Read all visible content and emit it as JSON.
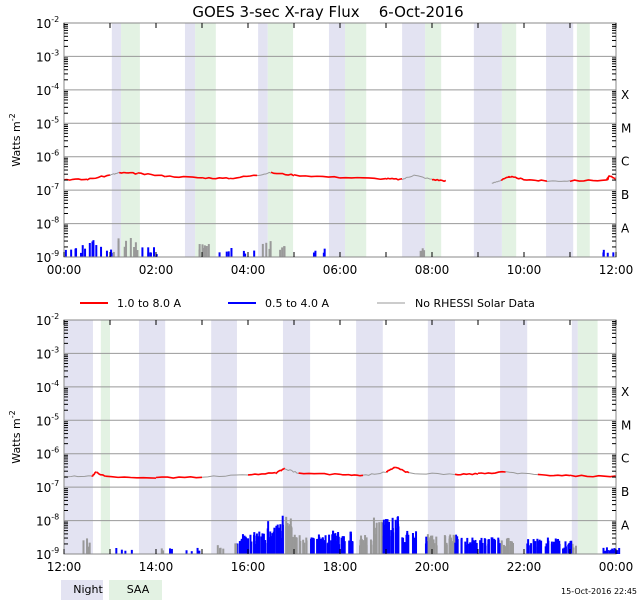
{
  "chart_data": {
    "type": "line",
    "title": "GOES 3-sec X-ray Flux    6-Oct-2016",
    "ylabel": "Watts m",
    "ylabel_exp": "-2",
    "y_scale": "log",
    "ylim": [
      1e-09,
      0.01
    ],
    "y_ticks": [
      {
        "base": "10",
        "exp": "-2"
      },
      {
        "base": "10",
        "exp": "-3"
      },
      {
        "base": "10",
        "exp": "-4"
      },
      {
        "base": "10",
        "exp": "-5"
      },
      {
        "base": "10",
        "exp": "-6"
      },
      {
        "base": "10",
        "exp": "-7"
      },
      {
        "base": "10",
        "exp": "-8"
      },
      {
        "base": "10",
        "exp": "-9"
      }
    ],
    "flare_classes": [
      "X",
      "M",
      "C",
      "B",
      "A"
    ],
    "legend": [
      {
        "label": "1.0 to 8.0 A",
        "color": "#ff0000"
      },
      {
        "label": "0.5 to 4.0 A",
        "color": "#0000ff"
      },
      {
        "label": "No RHESSI Solar Data",
        "color": "#999999"
      }
    ],
    "shade_legend": [
      {
        "label": "Night",
        "color": "#e3e3f2"
      },
      {
        "label": "SAA",
        "color": "#e3f2e3"
      }
    ],
    "footer": "15-Oct-2016 22:45",
    "panels": [
      {
        "x_range_hours": [
          0,
          12
        ],
        "x_ticks": [
          "00:00",
          "02:00",
          "04:00",
          "06:00",
          "08:00",
          "10:00",
          "12:00"
        ],
        "night": [
          [
            1.04,
            1.24
          ],
          [
            2.63,
            2.85
          ],
          [
            4.22,
            4.43
          ],
          [
            5.76,
            6.11
          ],
          [
            7.35,
            7.85
          ],
          [
            8.91,
            9.52
          ],
          [
            10.48,
            11.07
          ]
        ],
        "saa": [
          [
            1.24,
            1.65
          ],
          [
            2.85,
            3.3
          ],
          [
            4.43,
            4.98
          ],
          [
            6.11,
            6.57
          ],
          [
            7.85,
            8.2
          ],
          [
            9.52,
            9.83
          ],
          [
            11.15,
            11.43
          ]
        ],
        "long_channel_log10": [
          [
            0,
            -6.68
          ],
          [
            0.5,
            -6.68
          ],
          [
            1.0,
            -6.55
          ],
          [
            1.2,
            -6.48
          ],
          [
            1.6,
            -6.5
          ],
          [
            2.2,
            -6.58
          ],
          [
            3.0,
            -6.63
          ],
          [
            3.6,
            -6.65
          ],
          [
            4.2,
            -6.55
          ],
          [
            4.5,
            -6.48
          ],
          [
            5.0,
            -6.55
          ],
          [
            6.0,
            -6.62
          ],
          [
            7.0,
            -6.66
          ],
          [
            7.35,
            -6.68
          ],
          [
            7.6,
            -6.55
          ],
          [
            8.0,
            -6.68
          ],
          [
            8.3,
            -6.72
          ],
          [
            null,
            null
          ],
          [
            9.3,
            -6.8
          ],
          [
            9.5,
            -6.7
          ],
          [
            9.7,
            -6.6
          ],
          [
            10.0,
            -6.68
          ],
          [
            10.5,
            -6.73
          ],
          [
            11.0,
            -6.72
          ],
          [
            11.8,
            -6.7
          ],
          [
            11.85,
            -6.58
          ],
          [
            12,
            -6.65
          ]
        ],
        "short_channel_log10": [
          [
            0.1,
            -8.6
          ],
          [
            0.3,
            -8.7
          ],
          [
            0.5,
            -8.4
          ],
          [
            0.7,
            -8.5
          ],
          [
            1.1,
            -8.7
          ],
          [
            1.3,
            -8.4
          ],
          [
            1.5,
            -8.5
          ],
          [
            1.8,
            -8.7
          ],
          [
            2.0,
            -8.8
          ],
          [
            2.9,
            -8.5
          ],
          [
            3.1,
            -8.6
          ],
          [
            3.5,
            -8.7
          ],
          [
            4.0,
            -8.8
          ],
          [
            4.4,
            -8.5
          ],
          [
            4.7,
            -8.6
          ],
          [
            5.5,
            -8.7
          ],
          [
            7.9,
            -8.6
          ],
          [
            11.9,
            -8.7
          ]
        ]
      },
      {
        "x_range_hours": [
          12,
          24
        ],
        "x_ticks": [
          "12:00",
          "14:00",
          "16:00",
          "18:00",
          "20:00",
          "22:00",
          "00:00"
        ],
        "night": [
          [
            12.0,
            12.63
          ],
          [
            13.63,
            14.2
          ],
          [
            15.2,
            15.76
          ],
          [
            16.76,
            17.35
          ],
          [
            18.35,
            18.93
          ],
          [
            19.91,
            20.5
          ],
          [
            21.48,
            22.07
          ],
          [
            23.04,
            23.17
          ]
        ],
        "saa": [
          [
            12.8,
            13.0
          ],
          [
            23.17,
            23.6
          ]
        ],
        "long_channel_log10": [
          [
            12,
            -6.68
          ],
          [
            12.6,
            -6.68
          ],
          [
            12.7,
            -6.55
          ],
          [
            12.9,
            -6.68
          ],
          [
            14.0,
            -6.72
          ],
          [
            15.0,
            -6.7
          ],
          [
            16.0,
            -6.62
          ],
          [
            16.6,
            -6.58
          ],
          [
            16.8,
            -6.45
          ],
          [
            17.1,
            -6.58
          ],
          [
            18.0,
            -6.62
          ],
          [
            18.5,
            -6.66
          ],
          [
            19.0,
            -6.55
          ],
          [
            19.2,
            -6.4
          ],
          [
            19.5,
            -6.58
          ],
          [
            20.5,
            -6.62
          ],
          [
            21.0,
            -6.6
          ],
          [
            21.6,
            -6.55
          ],
          [
            22.3,
            -6.63
          ],
          [
            23.0,
            -6.66
          ],
          [
            24,
            -6.68
          ]
        ],
        "short_channel_log10": [
          [
            12.5,
            -8.5
          ],
          [
            13.3,
            -8.8
          ],
          [
            14.3,
            -8.8
          ],
          [
            14.8,
            -8.8
          ],
          [
            15.4,
            -8.7
          ],
          [
            15.9,
            -8.4
          ],
          [
            16.3,
            -8.3
          ],
          [
            16.6,
            -8.0
          ],
          [
            16.8,
            -7.85
          ],
          [
            17.1,
            -8.4
          ],
          [
            17.5,
            -8.4
          ],
          [
            17.8,
            -8.3
          ],
          [
            18.1,
            -8.3
          ],
          [
            18.6,
            -8.4
          ],
          [
            18.9,
            -7.9
          ],
          [
            19.1,
            -7.85
          ],
          [
            19.5,
            -8.3
          ],
          [
            20.0,
            -8.4
          ],
          [
            20.4,
            -8.4
          ],
          [
            20.8,
            -8.5
          ],
          [
            21.2,
            -8.5
          ],
          [
            21.6,
            -8.5
          ],
          [
            22.2,
            -8.5
          ],
          [
            22.6,
            -8.5
          ],
          [
            23.0,
            -8.6
          ],
          [
            23.9,
            -8.8
          ]
        ]
      }
    ]
  }
}
